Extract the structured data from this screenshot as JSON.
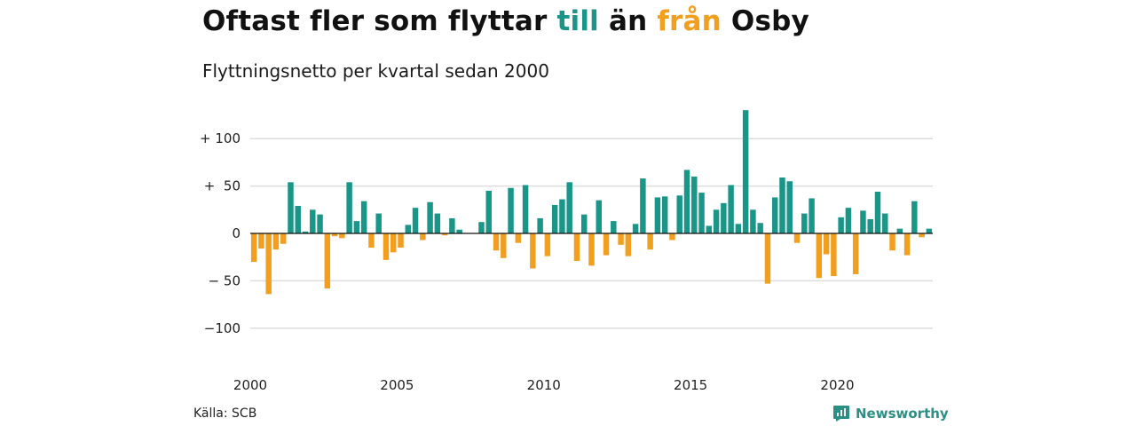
{
  "header": {
    "title_start": "Oftast fler som flyttar ",
    "title_pos": "till",
    "title_mid": " än ",
    "title_neg": "från",
    "title_end": " Osby",
    "subtitle": "Flyttningsnetto per kvartal sedan 2000"
  },
  "footer": {
    "source": "Källa: SCB",
    "brand": "Newsworthy"
  },
  "colors": {
    "positive": "#1a9689",
    "negative": "#f29e1f",
    "grid": "#dddddd",
    "zero_line": "#111111"
  },
  "chart_data": {
    "type": "bar",
    "x_start": "2000 Q1",
    "frequency": "quarter",
    "ylim": [
      -120,
      130
    ],
    "yticks": [
      100,
      50,
      0,
      -50,
      -100
    ],
    "ytick_labels": [
      "+ 100",
      "+  50",
      "0",
      "− 50",
      "−100"
    ],
    "xtick_labels": [
      "2000",
      "2005",
      "2010",
      "2015",
      "2020"
    ],
    "grid": true,
    "values": [
      -30,
      -16,
      -64,
      -17,
      -11,
      54,
      29,
      2,
      25,
      20,
      -58,
      -3,
      -5,
      54,
      13,
      34,
      -15,
      21,
      -28,
      -20,
      -15,
      9,
      27,
      -7,
      33,
      21,
      -2,
      16,
      4,
      0,
      0,
      12,
      45,
      -18,
      -26,
      48,
      -10,
      51,
      -37,
      16,
      -24,
      30,
      36,
      54,
      -29,
      20,
      -34,
      35,
      -23,
      13,
      -12,
      -24,
      10,
      58,
      -17,
      38,
      39,
      -7,
      40,
      67,
      60,
      43,
      8,
      25,
      32,
      51,
      10,
      130,
      25,
      11,
      -53,
      38,
      59,
      55,
      -10,
      21,
      37,
      -47,
      -22,
      -45,
      17,
      27,
      -43,
      24,
      15,
      44,
      21,
      -18,
      5,
      -23,
      34,
      -4,
      5
    ]
  }
}
